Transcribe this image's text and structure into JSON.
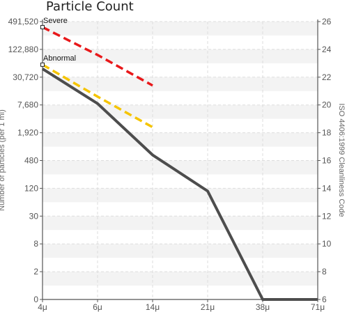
{
  "chart_data": {
    "type": "line",
    "title": "Particle Count",
    "xlabel": "",
    "ylabel_left": "Number of particles (per 1 ml)",
    "ylabel_right": "ISO 4406:1999 Cleanliness Code",
    "x_categories": [
      "4μ",
      "6μ",
      "14μ",
      "21μ",
      "38μ",
      "71μ"
    ],
    "y_left_ticks": [
      "0",
      "2",
      "8",
      "30",
      "120",
      "480",
      "1,920",
      "7,680",
      "30,720",
      "122,880",
      "491,520"
    ],
    "y_right_ticks": [
      "6",
      "8",
      "10",
      "12",
      "14",
      "16",
      "18",
      "20",
      "22",
      "24",
      "26"
    ],
    "y_right_range": [
      6,
      26
    ],
    "grid": true,
    "series": [
      {
        "name": "",
        "style": "solid",
        "color": "#4d4d4d",
        "points": [
          {
            "x": "4μ",
            "code": 22.6
          },
          {
            "x": "6μ",
            "code": 20.1
          },
          {
            "x": "14μ",
            "code": 16.4
          },
          {
            "x": "21μ",
            "code": 13.8
          },
          {
            "x": "38μ",
            "code": 6
          },
          {
            "x": "71μ",
            "code": 6
          }
        ]
      },
      {
        "name": "",
        "style": "dashed",
        "color": "#e8181a",
        "points": [
          {
            "x": "4μ",
            "code": 25.6
          },
          {
            "x": "6μ",
            "code": 23.6
          },
          {
            "x": "14μ",
            "code": 21.4
          }
        ]
      },
      {
        "name": "",
        "style": "dashed",
        "color": "#f5c400",
        "points": [
          {
            "x": "4μ",
            "code": 22.9
          },
          {
            "x": "6μ",
            "code": 20.6
          },
          {
            "x": "14μ",
            "code": 18.4
          }
        ]
      }
    ],
    "annotations": [
      {
        "text": "Severe",
        "x": "4μ",
        "code": 25.6
      },
      {
        "text": "Abnormal",
        "x": "4μ",
        "code": 22.9
      }
    ]
  }
}
